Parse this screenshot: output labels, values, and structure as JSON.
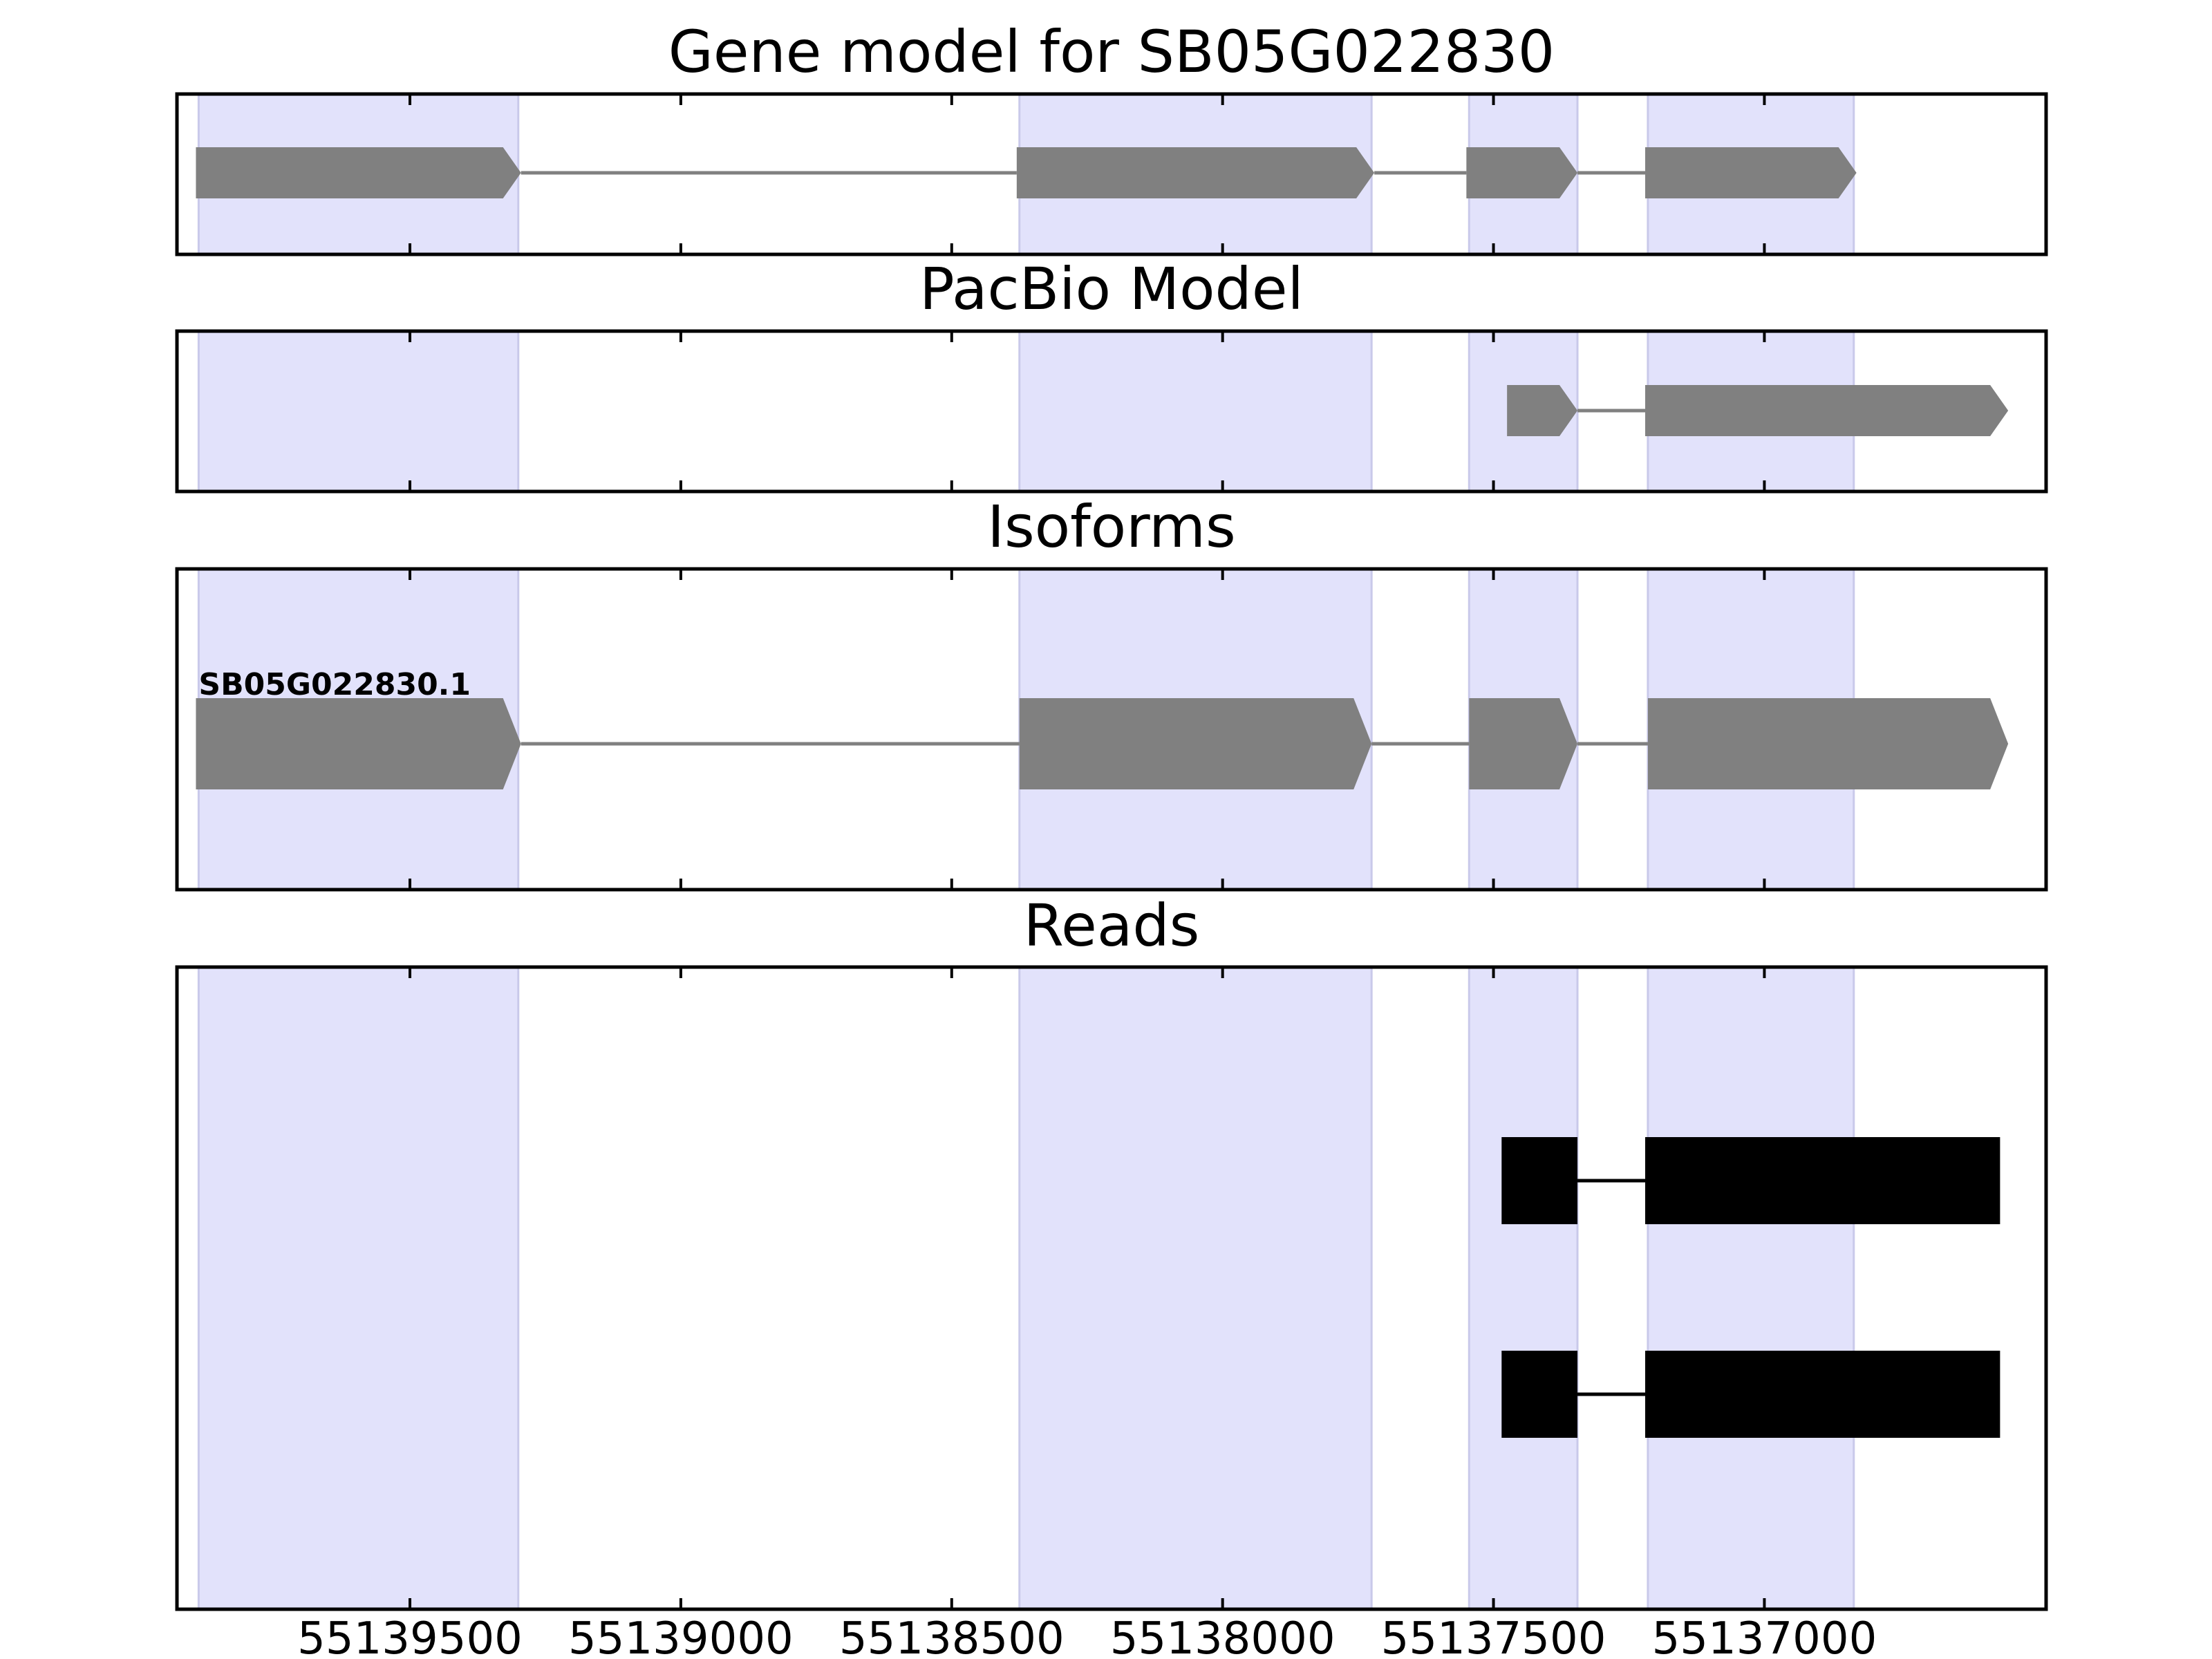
{
  "colors": {
    "exon_region": "#e2e2fb",
    "exon_region_edge": "#c9c9ea",
    "model_feature": "#808080",
    "intron_line": "#808080",
    "read_feature": "#000000",
    "read_intron": "#000000"
  },
  "chart_data": {
    "type": "gene-track",
    "title": "Gene model for SB05G022830",
    "xaxis": {
      "reversed": true,
      "xlim": [
        55139930,
        55136480
      ],
      "ticks": [
        55139500,
        55139000,
        55138500,
        55138000,
        55137500,
        55137000
      ],
      "tick_labels": [
        "55139500",
        "55139000",
        "55138500",
        "55138000",
        "55137500",
        "55137000"
      ]
    },
    "exon_regions": [
      [
        55139890,
        55139300
      ],
      [
        55138375,
        55137725
      ],
      [
        55137545,
        55137345
      ],
      [
        55137215,
        55136835
      ]
    ],
    "panels": [
      {
        "title": "Gene model for SB05G022830",
        "tracks": [
          {
            "label": "",
            "style": "arrow",
            "strand": "-",
            "exons": [
              [
                55139895,
                55139295
              ],
              [
                55138380,
                55137720
              ],
              [
                55137550,
                55137345
              ],
              [
                55137220,
                55136830
              ]
            ]
          }
        ]
      },
      {
        "title": "PacBio Model",
        "tracks": [
          {
            "label": "",
            "style": "arrow",
            "strand": "-",
            "exons": [
              [
                55137475,
                55137345
              ],
              [
                55137220,
                55136550
              ]
            ]
          }
        ]
      },
      {
        "title": "Isoforms",
        "tracks": [
          {
            "label": "SB05G022830.1",
            "style": "arrow",
            "strand": "-",
            "exons": [
              [
                55139895,
                55139295
              ],
              [
                55138375,
                55137725
              ],
              [
                55137545,
                55137345
              ],
              [
                55137215,
                55136550
              ]
            ]
          }
        ]
      },
      {
        "title": "Reads",
        "tracks": [
          {
            "label": "",
            "style": "block",
            "strand": "-",
            "exons": [
              [
                55137485,
                55137345
              ],
              [
                55137220,
                55136565
              ]
            ]
          },
          {
            "label": "",
            "style": "block",
            "strand": "-",
            "exons": [
              [
                55137485,
                55137345
              ],
              [
                55137220,
                55136565
              ]
            ]
          }
        ]
      }
    ]
  }
}
